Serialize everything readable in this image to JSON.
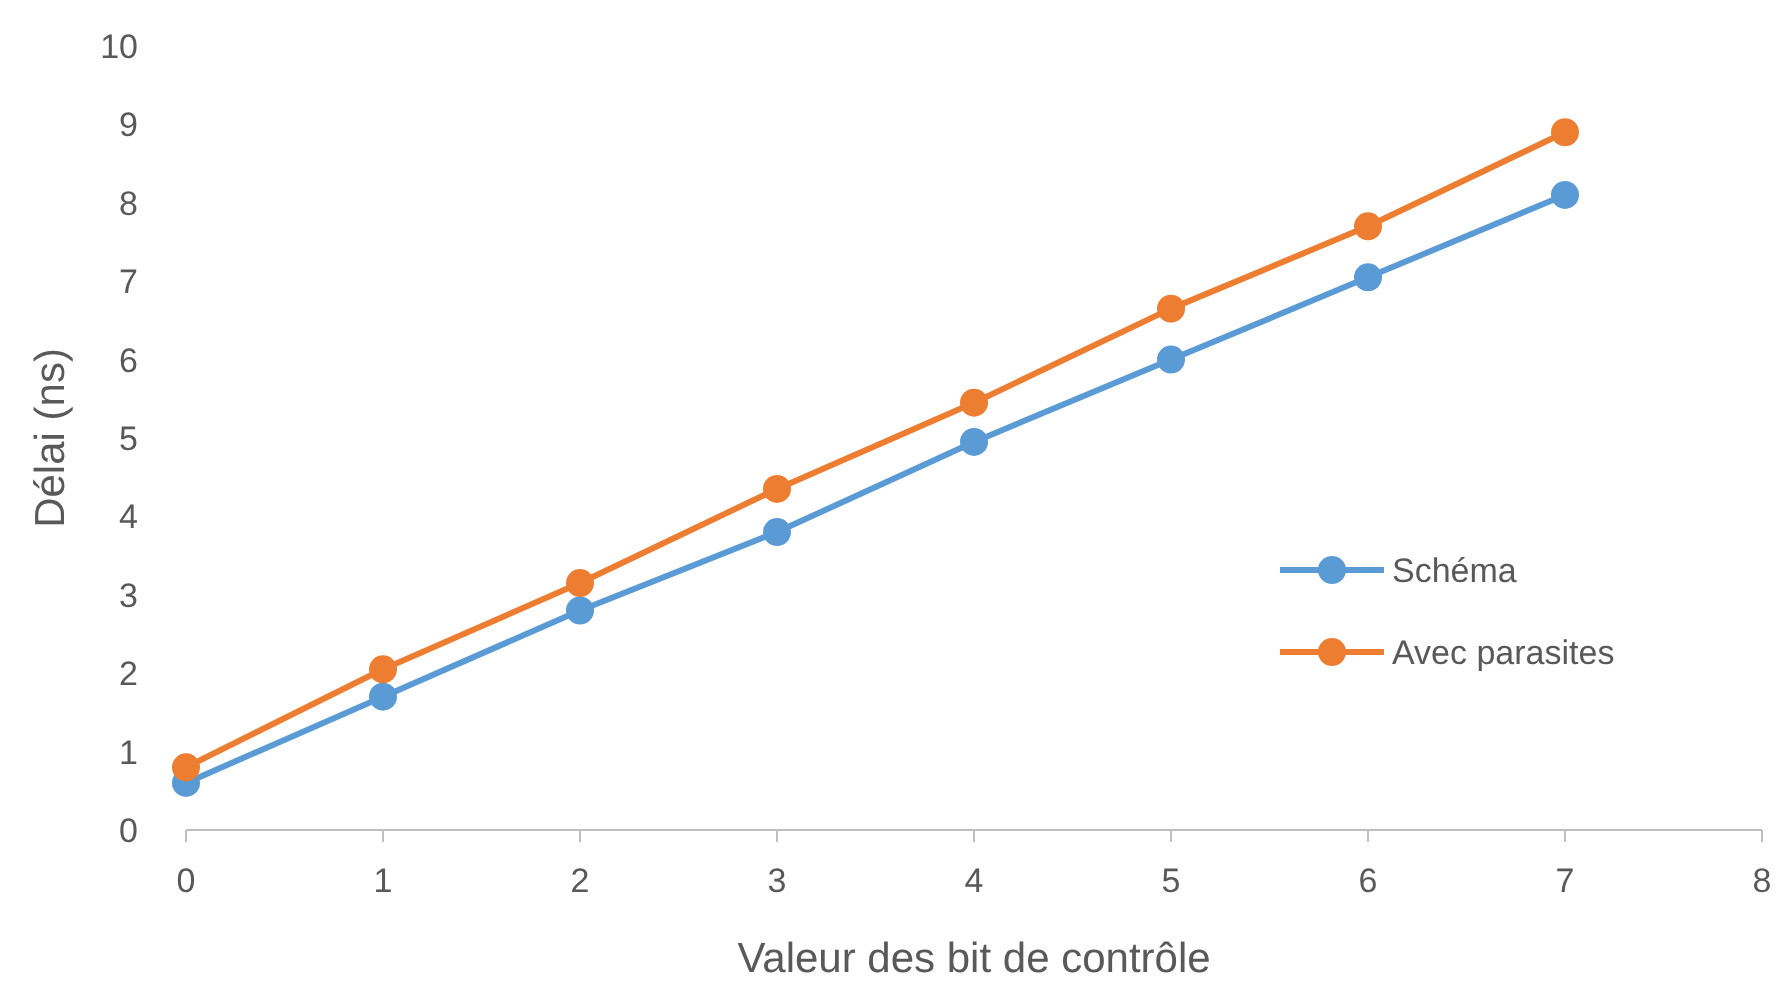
{
  "chart_data": {
    "type": "line",
    "xlabel": "Valeur des bit de contrôle",
    "ylabel": "Délai (ns)",
    "x": [
      0,
      1,
      2,
      3,
      4,
      5,
      6,
      7
    ],
    "series": [
      {
        "name": "Schéma",
        "color": "#5b9bd5",
        "values": [
          0.6,
          1.7,
          2.8,
          3.8,
          4.95,
          6.0,
          7.05,
          8.1
        ]
      },
      {
        "name": "Avec parasites",
        "color": "#ed7d31",
        "values": [
          0.8,
          2.05,
          3.15,
          4.35,
          5.45,
          6.65,
          7.7,
          8.9
        ]
      }
    ],
    "xlim": [
      0,
      8
    ],
    "xticks": [
      0,
      1,
      2,
      3,
      4,
      5,
      6,
      7,
      8
    ],
    "ylim": [
      0,
      10
    ],
    "yticks": [
      0,
      1,
      2,
      3,
      4,
      5,
      6,
      7,
      8,
      9,
      10
    ],
    "grid": false,
    "legend": "right",
    "marker": "circle",
    "line_style": "solid"
  }
}
